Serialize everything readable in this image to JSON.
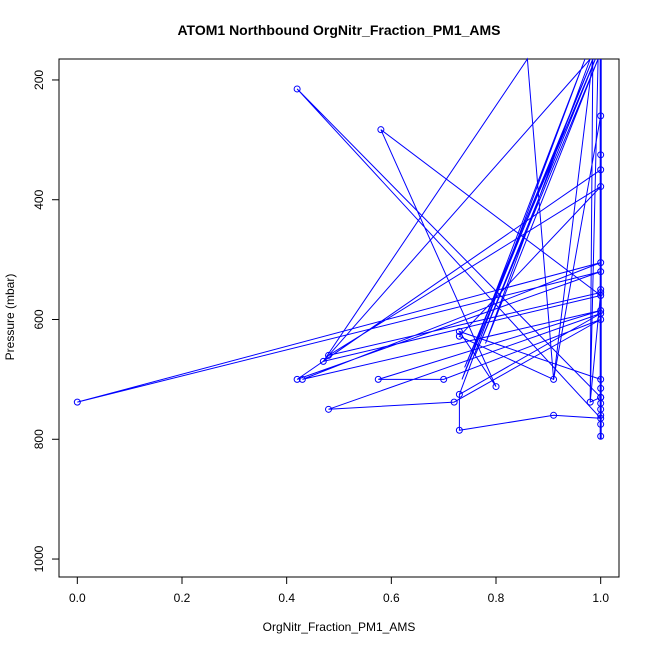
{
  "chart_data": {
    "type": "line",
    "title": "ATOM1 Northbound OrgNitr_Fraction_PM1_AMS",
    "xlabel": "OrgNitr_Fraction_PM1_AMS",
    "ylabel": "Pressure (mbar)",
    "xlim": [
      -0.035,
      1.035
    ],
    "ylim": [
      1030,
      165
    ],
    "y_reversed": true,
    "xticks": [
      {
        "value": 0.0,
        "label": "0.0"
      },
      {
        "value": 0.2,
        "label": "0.2"
      },
      {
        "value": 0.4,
        "label": "0.4"
      },
      {
        "value": 0.6,
        "label": "0.6"
      },
      {
        "value": 0.8,
        "label": "0.8"
      },
      {
        "value": 1.0,
        "label": "1.0"
      }
    ],
    "yticks": [
      {
        "value": 200,
        "label": "200"
      },
      {
        "value": 400,
        "label": "400"
      },
      {
        "value": 600,
        "label": "600"
      },
      {
        "value": 800,
        "label": "800"
      },
      {
        "value": 1000,
        "label": "1000"
      }
    ],
    "grid": false,
    "color": "#0000ff",
    "series": [
      {
        "style": "line+markers",
        "points": [
          [
            1.0,
            795
          ],
          [
            1.0,
            775
          ],
          [
            1.0,
            760
          ],
          [
            1.0,
            750
          ],
          [
            1.0,
            740
          ],
          [
            1.0,
            730
          ],
          [
            1.0,
            715
          ],
          [
            1.0,
            700
          ],
          [
            0.73,
            620
          ],
          [
            0.8,
            712
          ],
          [
            0.58,
            283
          ],
          [
            1.0,
            560
          ],
          [
            0.47,
            670
          ],
          [
            1.0,
            350
          ],
          [
            0.42,
            700
          ],
          [
            1.0,
            520
          ],
          [
            0.0,
            738
          ],
          [
            1.0,
            505
          ],
          [
            0.43,
            700
          ],
          [
            1.0,
            585
          ],
          [
            0.575,
            700
          ],
          [
            0.7,
            700
          ],
          [
            1.0,
            600
          ],
          [
            0.72,
            738
          ],
          [
            0.48,
            750
          ],
          [
            1.0,
            590
          ],
          [
            0.73,
            725
          ],
          [
            0.73,
            785
          ],
          [
            0.91,
            760
          ],
          [
            1.0,
            765
          ],
          [
            0.42,
            215
          ],
          [
            1.0,
            730
          ],
          [
            0.98,
            738
          ],
          [
            1.0,
            555
          ],
          [
            0.48,
            660
          ],
          [
            1.0,
            378
          ],
          [
            0.73,
            628
          ],
          [
            0.91,
            700
          ],
          [
            1.0,
            260
          ],
          [
            1.0,
            325
          ],
          [
            1.0,
            550
          ]
        ]
      },
      {
        "style": "line",
        "points": [
          [
            0.73,
            725
          ],
          [
            0.97,
            165
          ],
          [
            0.735,
            700
          ],
          [
            0.985,
            165
          ],
          [
            0.74,
            680
          ],
          [
            0.99,
            165
          ],
          [
            0.76,
            660
          ],
          [
            0.995,
            165
          ],
          [
            0.78,
            640
          ],
          [
            0.98,
            165
          ],
          [
            0.47,
            670
          ],
          [
            0.86,
            165
          ],
          [
            0.91,
            700
          ],
          [
            0.985,
            165
          ],
          [
            0.98,
            735
          ],
          [
            0.995,
            165
          ]
        ]
      },
      {
        "style": "line",
        "points": [
          [
            1.0,
            165
          ],
          [
            1.0,
            800
          ]
        ]
      }
    ]
  }
}
